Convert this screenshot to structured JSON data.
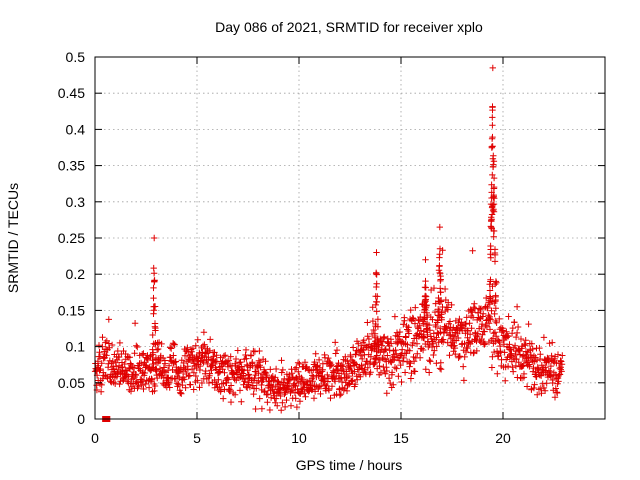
{
  "chart_data": {
    "type": "scatter",
    "title": "Day 086 of 2021, SRMTID for receiver xplo",
    "xlabel": "GPS time / hours",
    "ylabel": "SRMTID / TECUs",
    "xlim": [
      0,
      25
    ],
    "ylim": [
      0,
      0.5
    ],
    "x_ticks": [
      0,
      5,
      10,
      15,
      20
    ],
    "x_tick_labels": [
      "0",
      "5",
      "10",
      "15",
      "20"
    ],
    "y_ticks": [
      0,
      0.05,
      0.1,
      0.15,
      0.2,
      0.25,
      0.3,
      0.35,
      0.4,
      0.45,
      0.5
    ],
    "y_tick_labels": [
      "0",
      "0.05",
      "0.1",
      "0.15",
      "0.2",
      "0.25",
      "0.3",
      "0.35",
      "0.4",
      "0.45",
      "0.5"
    ],
    "grid": true,
    "marker": "+",
    "color": "#e00000",
    "data_span_hours": [
      0,
      22.9
    ],
    "series": [
      {
        "name": "SRMTID",
        "profile": [
          {
            "x": 0.0,
            "y": 0.07
          },
          {
            "x": 0.5,
            "y": 0.075
          },
          {
            "x": 1.0,
            "y": 0.07
          },
          {
            "x": 1.5,
            "y": 0.065
          },
          {
            "x": 2.0,
            "y": 0.065
          },
          {
            "x": 2.5,
            "y": 0.065
          },
          {
            "x": 3.0,
            "y": 0.07
          },
          {
            "x": 3.5,
            "y": 0.065
          },
          {
            "x": 4.0,
            "y": 0.065
          },
          {
            "x": 4.5,
            "y": 0.07
          },
          {
            "x": 5.0,
            "y": 0.08
          },
          {
            "x": 5.5,
            "y": 0.075
          },
          {
            "x": 6.0,
            "y": 0.065
          },
          {
            "x": 6.5,
            "y": 0.06
          },
          {
            "x": 7.0,
            "y": 0.065
          },
          {
            "x": 7.5,
            "y": 0.06
          },
          {
            "x": 8.0,
            "y": 0.055
          },
          {
            "x": 8.5,
            "y": 0.045
          },
          {
            "x": 9.0,
            "y": 0.04
          },
          {
            "x": 9.5,
            "y": 0.045
          },
          {
            "x": 10.0,
            "y": 0.05
          },
          {
            "x": 10.5,
            "y": 0.055
          },
          {
            "x": 11.0,
            "y": 0.06
          },
          {
            "x": 11.5,
            "y": 0.06
          },
          {
            "x": 12.0,
            "y": 0.06
          },
          {
            "x": 12.5,
            "y": 0.065
          },
          {
            "x": 13.0,
            "y": 0.075
          },
          {
            "x": 13.5,
            "y": 0.09
          },
          {
            "x": 14.0,
            "y": 0.095
          },
          {
            "x": 14.5,
            "y": 0.08
          },
          {
            "x": 15.0,
            "y": 0.1
          },
          {
            "x": 15.5,
            "y": 0.105
          },
          {
            "x": 16.0,
            "y": 0.11
          },
          {
            "x": 16.5,
            "y": 0.12
          },
          {
            "x": 17.0,
            "y": 0.13
          },
          {
            "x": 17.5,
            "y": 0.12
          },
          {
            "x": 18.0,
            "y": 0.11
          },
          {
            "x": 18.5,
            "y": 0.12
          },
          {
            "x": 19.0,
            "y": 0.13
          },
          {
            "x": 19.5,
            "y": 0.14
          },
          {
            "x": 20.0,
            "y": 0.1
          },
          {
            "x": 20.5,
            "y": 0.09
          },
          {
            "x": 21.0,
            "y": 0.085
          },
          {
            "x": 21.5,
            "y": 0.07
          },
          {
            "x": 22.0,
            "y": 0.06
          },
          {
            "x": 22.5,
            "y": 0.07
          },
          {
            "x": 22.9,
            "y": 0.08
          }
        ],
        "peaks": [
          {
            "x": 2.9,
            "y": 0.25
          },
          {
            "x": 13.8,
            "y": 0.23
          },
          {
            "x": 16.2,
            "y": 0.22
          },
          {
            "x": 16.9,
            "y": 0.265
          },
          {
            "x": 19.5,
            "y": 0.485
          }
        ]
      }
    ],
    "gap_marker": {
      "x_range": [
        0.35,
        0.75
      ],
      "y": 0
    }
  }
}
